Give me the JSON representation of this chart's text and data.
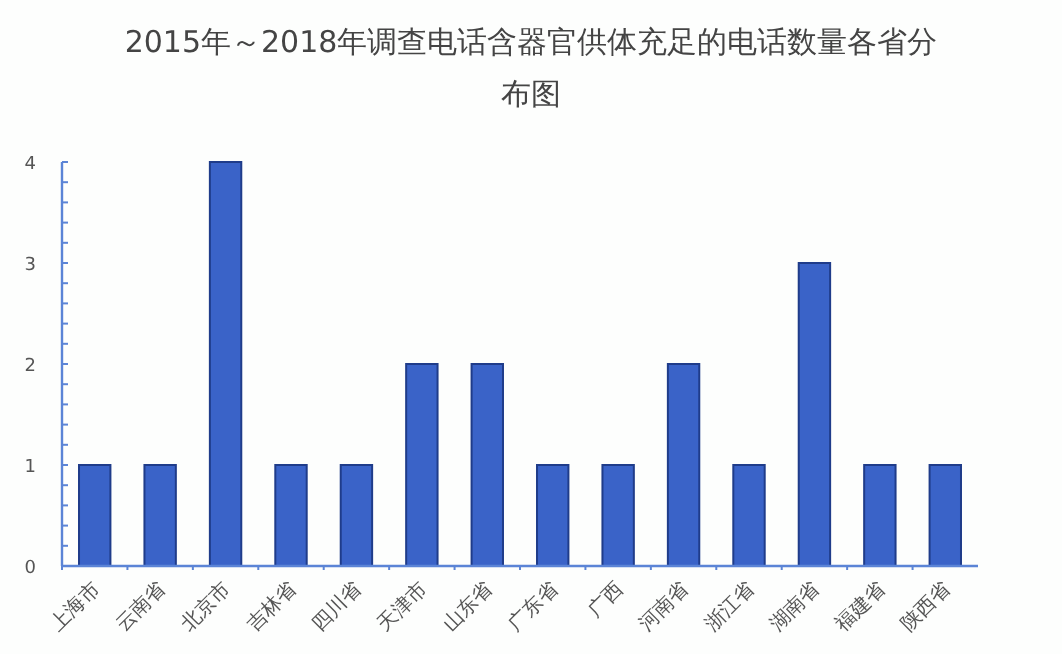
{
  "chart_data": {
    "type": "bar",
    "title": "2015年～2018年调查电话含器官供体充足的电话数量各省分布图",
    "categories": [
      "上海市",
      "云南省",
      "北京市",
      "吉林省",
      "四川省",
      "天津市",
      "山东省",
      "广东省",
      "广西",
      "河南省",
      "浙江省",
      "湖南省",
      "福建省",
      "陕西省"
    ],
    "values": [
      1,
      1,
      4,
      1,
      1,
      2,
      2,
      1,
      1,
      2,
      1,
      3,
      1,
      1
    ],
    "color": "#3a63c8",
    "ylim": [
      0,
      4
    ],
    "yticks": [
      0,
      {
        "value": 0.2,
        "label": null
      },
      {
        "value": 0.4,
        "label": null
      },
      {
        "value": 0.6,
        "label": null
      },
      {
        "value": 0.8,
        "label": null
      },
      1,
      {
        "value": 1.2,
        "label": null
      },
      {
        "value": 1.4,
        "label": null
      },
      {
        "value": 1.6,
        "label": null
      },
      {
        "value": 1.8,
        "label": null
      },
      2,
      {
        "value": 2.2,
        "label": null
      },
      {
        "value": 2.4,
        "label": null
      },
      {
        "value": 2.6,
        "label": null
      },
      {
        "value": 2.8,
        "label": null
      },
      3,
      {
        "value": 3.2,
        "label": null
      },
      {
        "value": 3.4,
        "label": null
      },
      {
        "value": 3.6,
        "label": null
      },
      {
        "value": 3.8,
        "label": null
      },
      4
    ],
    "grid": false
  }
}
